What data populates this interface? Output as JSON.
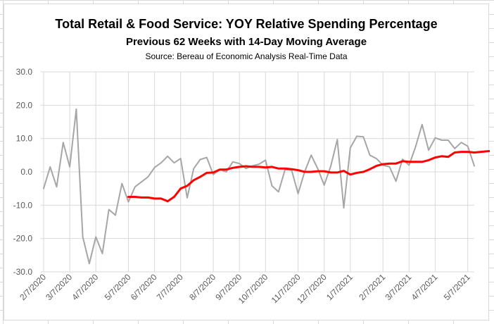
{
  "chart_data": {
    "type": "line",
    "title": "Total Retail & Food Service: YOY Relative Spending Percentage",
    "subtitle": "Previous 62 Weeks with 14-Day Moving Average",
    "source": "Source: Bereau of Economic Analysis Real-Time Data",
    "ylim": [
      -30,
      30
    ],
    "y_ticks": [
      "30.0",
      "20.0",
      "10.0",
      "0.0",
      "-10.0",
      "-20.0",
      "-30.0"
    ],
    "y_tick_values": [
      30,
      20,
      10,
      0,
      -10,
      -20,
      -30
    ],
    "x_tick_labels": [
      "2/7/2020",
      "3/7/2020",
      "4/7/2020",
      "5/7/2020",
      "6/7/2020",
      "7/7/2020",
      "8/7/2020",
      "9/7/2020",
      "10/7/2020",
      "11/7/2020",
      "12/7/2020",
      "1/7/2021",
      "2/7/2021",
      "3/7/2021",
      "4/7/2021",
      "5/7/2021"
    ],
    "x_tick_week_index": [
      0,
      4,
      8,
      13,
      17,
      21,
      26,
      30,
      34,
      39,
      43,
      47,
      52,
      56,
      60,
      65
    ],
    "grid": true,
    "legend": "none",
    "series": [
      {
        "color": "#a6a6a6",
        "values": [
          -5.0,
          1.5,
          -4.5,
          8.8,
          1.5,
          18.8,
          -19.5,
          -27.5,
          -19.5,
          -24.5,
          -11.3,
          -13.0,
          -3.5,
          -9.0,
          -4.5,
          -3.0,
          -1.5,
          1.3,
          2.7,
          4.7,
          2.7,
          4.0,
          -7.8,
          1.0,
          3.7,
          4.3,
          -0.8,
          0.7,
          0.0,
          3.0,
          2.5,
          1.0,
          1.8,
          2.3,
          3.5,
          -4.2,
          -6.0,
          0.7,
          0.5,
          -6.5,
          0.0,
          5.0,
          1.0,
          -4.0,
          1.7,
          9.7,
          -10.8,
          7.2,
          10.7,
          10.5,
          5.0,
          4.0,
          2.0,
          1.5,
          -2.8,
          3.8,
          2.0,
          7.5,
          14.2,
          6.5,
          10.2,
          9.5,
          9.5,
          7.0,
          8.8,
          7.7,
          1.8
        ],
        "x_start": 0
      },
      {
        "color": "#ff0000",
        "values": [
          -7.5,
          -7.5,
          -7.7,
          -7.7,
          -8.0,
          -8.0,
          -8.8,
          -7.5,
          -5.0,
          -4.2,
          -2.5,
          -1.5,
          -0.3,
          -0.2,
          0.7,
          0.7,
          1.2,
          1.5,
          1.7,
          1.5,
          1.5,
          1.3,
          1.5,
          1.0,
          1.0,
          0.8,
          0.5,
          0.0,
          0.0,
          0.2,
          0.2,
          -0.2,
          -0.2,
          0.3,
          -0.8,
          -0.3,
          0.0,
          0.8,
          1.8,
          2.3,
          2.5,
          2.5,
          3.2,
          3.0,
          3.0,
          3.0,
          3.5,
          4.3,
          4.7,
          4.5,
          5.8,
          6.0,
          6.0,
          5.8,
          6.0,
          6.2,
          6.3
        ],
        "x_start": 13
      }
    ]
  }
}
